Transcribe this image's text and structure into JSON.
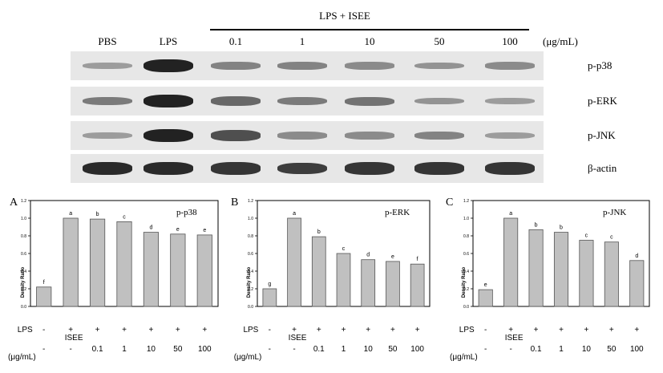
{
  "blot": {
    "lanes": [
      "PBS",
      "LPS",
      "0.1",
      "1",
      "10",
      "50",
      "100"
    ],
    "group_label": "LPS + ISEE",
    "unit": "(μg/mL)",
    "proteins": [
      "p-p38",
      "p-ERK",
      "p-JNK",
      "β-actin"
    ],
    "band_intensity": [
      [
        0.25,
        0.95,
        0.4,
        0.4,
        0.35,
        0.3,
        0.35
      ],
      [
        0.45,
        0.95,
        0.55,
        0.45,
        0.5,
        0.3,
        0.25
      ],
      [
        0.25,
        0.95,
        0.7,
        0.35,
        0.35,
        0.4,
        0.25
      ],
      [
        0.9,
        0.9,
        0.85,
        0.8,
        0.85,
        0.85,
        0.85
      ]
    ]
  },
  "chart_data": [
    {
      "type": "bar",
      "panel": "A",
      "title": "p-p38",
      "ylabel": "Density Ratio",
      "ylim": [
        0,
        1.2
      ],
      "yticks": [
        "0.0",
        "0.2",
        "0.4",
        "0.6",
        "0.8",
        "1.0",
        "1.2"
      ],
      "categories": [
        "PBS",
        "LPS",
        "0.1",
        "1",
        "10",
        "50",
        "100"
      ],
      "values": [
        0.22,
        1.0,
        0.99,
        0.96,
        0.84,
        0.82,
        0.81
      ],
      "significance": [
        "f",
        "a",
        "b",
        "c",
        "d",
        "e",
        "e"
      ]
    },
    {
      "type": "bar",
      "panel": "B",
      "title": "p-ERK",
      "ylabel": "Density Ratio",
      "ylim": [
        0,
        1.2
      ],
      "yticks": [
        "0.0",
        "0.2",
        "0.4",
        "0.6",
        "0.8",
        "1.0",
        "1.2"
      ],
      "categories": [
        "PBS",
        "LPS",
        "0.1",
        "1",
        "10",
        "50",
        "100"
      ],
      "values": [
        0.2,
        1.0,
        0.79,
        0.6,
        0.53,
        0.51,
        0.48
      ],
      "significance": [
        "g",
        "a",
        "b",
        "c",
        "d",
        "e",
        "f"
      ]
    },
    {
      "type": "bar",
      "panel": "C",
      "title": "p-JNK",
      "ylabel": "Density Ratio",
      "ylim": [
        0,
        1.2
      ],
      "yticks": [
        "0.0",
        "0.2",
        "0.4",
        "0.6",
        "0.8",
        "1.0",
        "1.2"
      ],
      "categories": [
        "PBS",
        "LPS",
        "0.1",
        "1",
        "10",
        "50",
        "100"
      ],
      "values": [
        0.19,
        1.0,
        0.87,
        0.84,
        0.75,
        0.73,
        0.52
      ],
      "significance": [
        "e",
        "a",
        "b",
        "b",
        "c",
        "c",
        "d"
      ]
    }
  ],
  "conditions": {
    "lps_label": "LPS",
    "isee_label": "ISEE",
    "unit_label": "(μg/mL)",
    "lps_row": [
      "-",
      "+",
      "+",
      "+",
      "+",
      "+",
      "+"
    ],
    "isee_row": [
      "-",
      "-",
      "0.1",
      "1",
      "10",
      "50",
      "100"
    ]
  },
  "colors": {
    "bar_fill": "#c0c0c0",
    "bar_stroke": "#555555",
    "blot_background": "#e7e7e7",
    "band": "#1a1a1a"
  }
}
